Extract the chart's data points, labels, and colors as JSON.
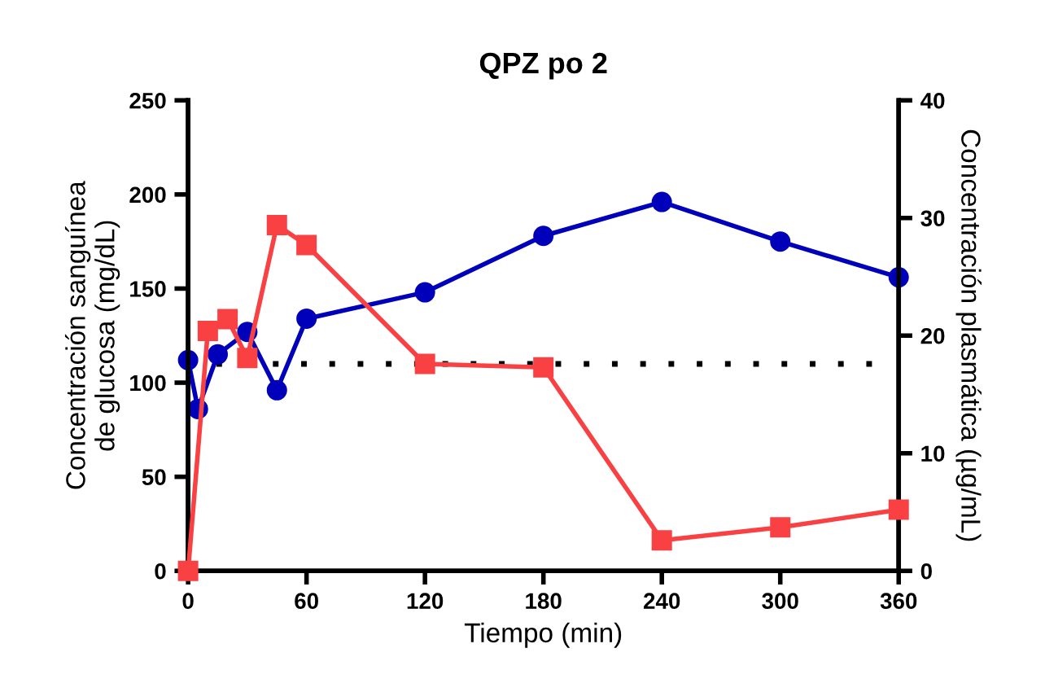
{
  "chart_data": {
    "type": "line",
    "title": "QPZ po 2",
    "xlabel": "Tiempo (min)",
    "ylabel": "Concentración sanguínea\nde glucosa (mg/dL)",
    "y2label": "Concentración plasmática (µg/mL)",
    "series": [
      {
        "color": "#0000bb",
        "marker": "circle",
        "x": [
          0,
          5,
          15,
          30,
          45,
          60,
          120,
          180,
          240,
          300,
          360
        ],
        "values": [
          112,
          86,
          115,
          127,
          96,
          134,
          148,
          178,
          196,
          175,
          156
        ]
      },
      {
        "color": "#f94144",
        "marker": "square",
        "axis": "y2",
        "x": [
          0,
          10,
          20,
          30,
          45,
          60,
          120,
          180,
          240,
          300,
          360
        ],
        "values": [
          0,
          20.4,
          21.4,
          18.1,
          29.4,
          27.7,
          17.6,
          17.3,
          2.6,
          3.7,
          5.2
        ]
      }
    ],
    "xlim": [
      0,
      360
    ],
    "xticks": [
      0,
      60,
      120,
      180,
      240,
      300,
      360
    ],
    "ylim": [
      0,
      250
    ],
    "yticks": [
      0,
      50,
      100,
      150,
      200,
      250
    ],
    "y2lim": [
      0,
      40
    ],
    "y2ticks": [
      0,
      10,
      20,
      30,
      40
    ],
    "ref_lines": [
      {
        "axis": "y",
        "value": 110,
        "color": "#000000",
        "line_style": "dotted"
      }
    ],
    "grid": false,
    "legend": false
  }
}
